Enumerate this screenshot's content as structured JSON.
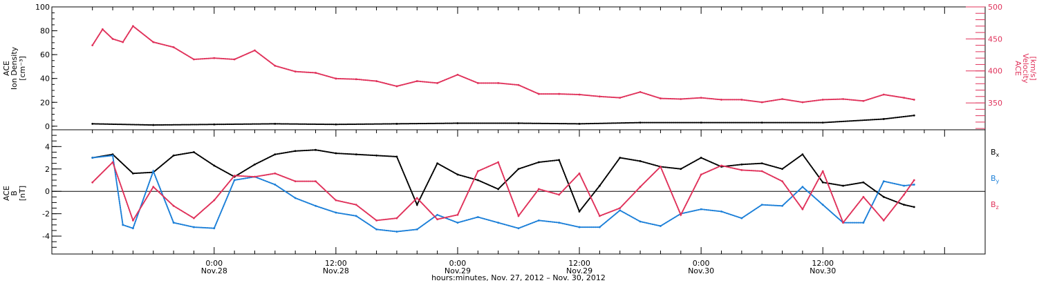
{
  "chart_data": [
    {
      "type": "scatter",
      "title": "",
      "ylabel_left": [
        "ACE",
        "Ion Density",
        "[cm⁻³]"
      ],
      "ylabel_right": [
        "ACE",
        "Velocity",
        "[km/s]"
      ],
      "ylim_left": [
        -3,
        100
      ],
      "ylim_right": [
        308,
        500
      ],
      "yticks_left": [
        "0",
        "20",
        "40",
        "60",
        "80",
        "100"
      ],
      "yticks_right": [
        "350",
        "400",
        "450",
        "500"
      ],
      "colors": {
        "density": "#000000",
        "velocity": "#e0315a"
      },
      "series": [
        {
          "name": "Ion Density",
          "axis": "left",
          "color": "#000000",
          "x": [
            0,
            6,
            12,
            18,
            24,
            30,
            36,
            42,
            48,
            54,
            60,
            66,
            72,
            78,
            81
          ],
          "y": [
            2,
            1,
            1.5,
            2,
            1.5,
            2,
            2.5,
            2.5,
            2,
            3,
            3,
            3,
            3,
            6,
            9
          ]
        },
        {
          "name": "Velocity",
          "axis": "right",
          "color": "#e0315a",
          "x": [
            0,
            1,
            2,
            3,
            4,
            6,
            8,
            10,
            12,
            14,
            16,
            18,
            20,
            22,
            24,
            26,
            28,
            30,
            32,
            34,
            36,
            38,
            40,
            42,
            44,
            46,
            48,
            50,
            52,
            54,
            56,
            58,
            60,
            62,
            64,
            66,
            68,
            70,
            72,
            74,
            76,
            78,
            80,
            81
          ],
          "y": [
            440,
            465,
            450,
            445,
            470,
            445,
            437,
            418,
            420,
            418,
            432,
            408,
            399,
            397,
            388,
            387,
            384,
            376,
            384,
            381,
            394,
            381,
            381,
            378,
            364,
            364,
            363,
            360,
            358,
            367,
            357,
            356,
            358,
            355,
            355,
            351,
            356,
            351,
            355,
            356,
            353,
            363,
            358,
            355
          ]
        }
      ]
    },
    {
      "type": "scatter",
      "title": "",
      "ylabel": [
        "ACE",
        "B",
        "[nT]"
      ],
      "ylim": [
        -5.6,
        5.5
      ],
      "yticks": [
        "-4",
        "-2",
        "0",
        "2",
        "4"
      ],
      "series": [
        {
          "name": "Bx",
          "label_main": "B",
          "label_sub": "x",
          "color": "#000000",
          "x": [
            0,
            2,
            4,
            6,
            8,
            10,
            12,
            14,
            16,
            18,
            20,
            22,
            24,
            26,
            28,
            30,
            32,
            34,
            36,
            38,
            40,
            42,
            44,
            46,
            48,
            50,
            52,
            54,
            56,
            58,
            60,
            62,
            64,
            66,
            68,
            70,
            72,
            74,
            76,
            78,
            80,
            81
          ],
          "y": [
            3,
            3.3,
            1.6,
            1.7,
            3.2,
            3.5,
            2.3,
            1.3,
            2.4,
            3.3,
            3.6,
            3.7,
            3.4,
            3.3,
            3.2,
            3.1,
            -1.2,
            2.5,
            1.5,
            1,
            0.2,
            2,
            2.6,
            2.8,
            -1.8,
            0.5,
            3,
            2.7,
            2.2,
            2,
            3,
            2.2,
            2.4,
            2.5,
            2,
            3.3,
            0.8,
            0.5,
            0.8,
            -0.5,
            -1.2,
            -1.4
          ]
        },
        {
          "name": "By",
          "label_main": "B",
          "label_sub": "y",
          "color": "#1b7fd8",
          "x": [
            0,
            2,
            3,
            4,
            6,
            8,
            10,
            12,
            14,
            16,
            18,
            20,
            22,
            24,
            26,
            28,
            30,
            32,
            34,
            36,
            38,
            40,
            42,
            44,
            46,
            48,
            50,
            52,
            54,
            56,
            58,
            60,
            62,
            64,
            66,
            68,
            70,
            72,
            74,
            76,
            78,
            80,
            81
          ],
          "y": [
            3,
            3.2,
            -3,
            -3.3,
            1.8,
            -2.8,
            -3.2,
            -3.3,
            1,
            1.3,
            0.6,
            -0.6,
            -1.3,
            -1.9,
            -2.2,
            -3.4,
            -3.6,
            -3.4,
            -2.1,
            -2.8,
            -2.3,
            -2.8,
            -3.3,
            -2.6,
            -2.8,
            -3.2,
            -3.2,
            -1.7,
            -2.7,
            -3.1,
            -2,
            -1.6,
            -1.8,
            -2.4,
            -1.2,
            -1.3,
            0.4,
            -1.2,
            -2.8,
            -2.8,
            0.9,
            0.5,
            0.6
          ]
        },
        {
          "name": "Bz",
          "label_main": "B",
          "label_sub": "z",
          "color": "#e0315a",
          "x": [
            0,
            2,
            4,
            6,
            8,
            10,
            12,
            14,
            16,
            18,
            20,
            22,
            24,
            26,
            28,
            30,
            32,
            34,
            36,
            38,
            40,
            42,
            44,
            46,
            48,
            50,
            52,
            54,
            56,
            58,
            60,
            62,
            64,
            66,
            68,
            70,
            72,
            74,
            76,
            78,
            80,
            81
          ],
          "y": [
            0.8,
            2.6,
            -2.6,
            0.4,
            -1.3,
            -2.4,
            -0.8,
            1.4,
            1.3,
            1.6,
            0.9,
            0.9,
            -0.8,
            -1.2,
            -2.6,
            -2.4,
            -0.6,
            -2.5,
            -2.1,
            1.8,
            2.6,
            -2.2,
            0.2,
            -0.3,
            1.6,
            -2.2,
            -1.5,
            0.4,
            2.2,
            -2.1,
            1.5,
            2.3,
            1.9,
            1.8,
            0.9,
            -1.6,
            1.8,
            -2.8,
            -0.5,
            -2.6,
            -0.3,
            1
          ]
        }
      ]
    }
  ],
  "xaxis": {
    "xlim": [
      -4,
      88
    ],
    "tick_time_labels": [
      "0:00",
      "12:00",
      "0:00",
      "12:00",
      "0:00",
      "12:00"
    ],
    "tick_date_labels": [
      "Nov.28",
      "Nov.28",
      "Nov.29",
      "Nov.29",
      "Nov.30",
      "Nov.30"
    ],
    "tick_hours": [
      12,
      24,
      36,
      48,
      60,
      72
    ],
    "xlabel": "hours:minutes, Nov. 27, 2012 – Nov. 30, 2012"
  }
}
